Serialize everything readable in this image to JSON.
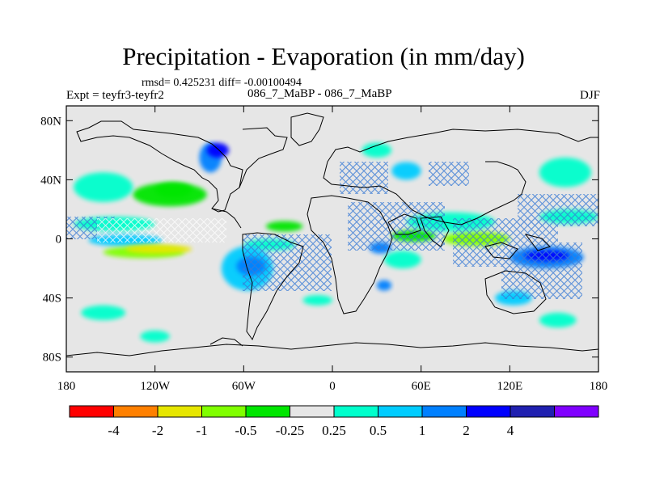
{
  "title": "Precipitation - Evaporation (in mm/day)",
  "subtitle": "rmsd= 0.425231  diff= -0.00100494",
  "experiment_label": "Expt = teyfr3-teyfr2",
  "center_label": "086_7_MaBP - 086_7_MaBP",
  "season_label": "DJF",
  "map": {
    "projection": "cylindrical equidistant",
    "lon_range": [
      -180,
      180
    ],
    "lat_range": [
      -90,
      90
    ],
    "background_color": "#e6e6e6",
    "x_ticks": [
      {
        "value": -180,
        "label": "180"
      },
      {
        "value": -120,
        "label": "120W"
      },
      {
        "value": -60,
        "label": "60W"
      },
      {
        "value": 0,
        "label": "0"
      },
      {
        "value": 60,
        "label": "60E"
      },
      {
        "value": 120,
        "label": "120E"
      },
      {
        "value": 180,
        "label": "180"
      }
    ],
    "y_ticks": [
      {
        "value": 80,
        "label": "80N"
      },
      {
        "value": 40,
        "label": "40N"
      },
      {
        "value": 0,
        "label": "0"
      },
      {
        "value": -40,
        "label": "40S"
      },
      {
        "value": -80,
        "label": "80S"
      }
    ]
  },
  "colorbar": {
    "colors": [
      "#ff0000",
      "#ff8000",
      "#e6e600",
      "#80ff00",
      "#00e600",
      "#e6e6e6",
      "#00ffcc",
      "#00ccff",
      "#0080ff",
      "#0000ff",
      "#2020b0",
      "#8000ff"
    ],
    "labels": [
      "-4",
      "-2",
      "-1",
      "-0.5",
      "-0.25",
      "0.25",
      "0.5",
      "1",
      "2",
      "4"
    ]
  },
  "chart_data": {
    "type": "heatmap",
    "variable": "Precipitation - Evaporation",
    "units": "mm/day",
    "levels": [
      -4,
      -2,
      -1,
      -0.5,
      -0.25,
      0.25,
      0.5,
      1,
      2,
      4
    ],
    "features": [
      {
        "lon": [
          -175,
          -120
        ],
        "lat": [
          5,
          15
        ],
        "value": 0.35
      },
      {
        "lon": [
          -165,
          -115
        ],
        "lat": [
          -5,
          3
        ],
        "value": 0.7
      },
      {
        "lon": [
          -155,
          -100
        ],
        "lat": [
          -13,
          -5
        ],
        "value": -0.6
      },
      {
        "lon": [
          -140,
          -95
        ],
        "lat": [
          -10,
          -4
        ],
        "value": -1.2
      },
      {
        "lon": [
          -135,
          -85
        ],
        "lat": [
          22,
          38
        ],
        "value": -0.4
      },
      {
        "lon": [
          -120,
          -95
        ],
        "lat": [
          28,
          38
        ],
        "value": -0.3
      },
      {
        "lon": [
          -175,
          -135
        ],
        "lat": [
          25,
          45
        ],
        "value": 0.4
      },
      {
        "lon": [
          -90,
          -75
        ],
        "lat": [
          45,
          65
        ],
        "value": 1.2
      },
      {
        "lon": [
          -85,
          -70
        ],
        "lat": [
          55,
          65
        ],
        "value": 2.5
      },
      {
        "lon": [
          -60,
          -25
        ],
        "lat": [
          -8,
          0
        ],
        "value": 0.4
      },
      {
        "lon": [
          -75,
          -40
        ],
        "lat": [
          -35,
          -5
        ],
        "value": 0.8
      },
      {
        "lon": [
          -65,
          -45
        ],
        "lat": [
          -25,
          -12
        ],
        "value": 1.5
      },
      {
        "lon": [
          -45,
          -20
        ],
        "lat": [
          5,
          12
        ],
        "value": -0.3
      },
      {
        "lon": [
          25,
          40
        ],
        "lat": [
          -10,
          -2
        ],
        "value": 1.2
      },
      {
        "lon": [
          35,
          60
        ],
        "lat": [
          -20,
          -8
        ],
        "value": 0.5
      },
      {
        "lon": [
          40,
          70
        ],
        "lat": [
          -2,
          6
        ],
        "value": -0.4
      },
      {
        "lon": [
          75,
          120
        ],
        "lat": [
          -5,
          5
        ],
        "value": -0.5
      },
      {
        "lon": [
          50,
          110
        ],
        "lat": [
          5,
          18
        ],
        "value": 0.35
      },
      {
        "lon": [
          120,
          170
        ],
        "lat": [
          -20,
          -5
        ],
        "value": 1.3
      },
      {
        "lon": [
          130,
          160
        ],
        "lat": [
          -15,
          -8
        ],
        "value": 2.2
      },
      {
        "lon": [
          140,
          180
        ],
        "lat": [
          10,
          20
        ],
        "value": 0.5
      },
      {
        "lon": [
          140,
          175
        ],
        "lat": [
          35,
          55
        ],
        "value": 0.4
      },
      {
        "lon": [
          40,
          60
        ],
        "lat": [
          40,
          52
        ],
        "value": 0.7
      },
      {
        "lon": [
          20,
          40
        ],
        "lat": [
          55,
          65
        ],
        "value": 0.4
      },
      {
        "lon": [
          30,
          40
        ],
        "lat": [
          -35,
          -28
        ],
        "value": 2.0
      },
      {
        "lon": [
          110,
          135
        ],
        "lat": [
          -45,
          -35
        ],
        "value": 0.6
      },
      {
        "lon": [
          -130,
          -110
        ],
        "lat": [
          -70,
          -62
        ],
        "value": 0.4
      },
      {
        "lon": [
          -170,
          -140
        ],
        "lat": [
          -55,
          -45
        ],
        "value": 0.3
      },
      {
        "lon": [
          -20,
          0
        ],
        "lat": [
          -45,
          -38
        ],
        "value": 0.3
      },
      {
        "lon": [
          140,
          165
        ],
        "lat": [
          -60,
          -50
        ],
        "value": 0.5
      }
    ],
    "hatching": "stippled (significance)"
  }
}
